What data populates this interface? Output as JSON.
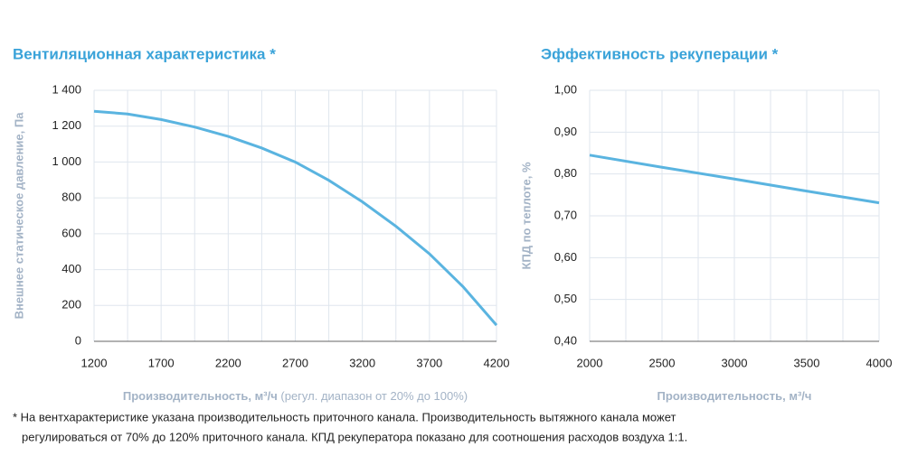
{
  "chart_data": [
    {
      "type": "line",
      "title": "Вентиляционная характеристика *",
      "y_label": "Внешнее статическое давление, Па",
      "x_label": "Производительность, м³/ч",
      "x_label_note": "(регул. диапазон от 20% до 100%)",
      "x": [
        1200,
        1450,
        1700,
        1950,
        2200,
        2450,
        2700,
        2950,
        3200,
        3450,
        3700,
        3950,
        4200
      ],
      "series": [
        {
          "color": "#5ab4e0",
          "values": [
            1283,
            1268,
            1237,
            1195,
            1143,
            1078,
            1000,
            898,
            778,
            642,
            488,
            305,
            90
          ]
        }
      ],
      "xlim": [
        1200,
        4200
      ],
      "xticks": [
        1200,
        1700,
        2200,
        2700,
        3200,
        3700,
        4200
      ],
      "ylim": [
        0,
        1400
      ],
      "yticks": [
        0,
        200,
        400,
        600,
        800,
        {
          "value": 1000,
          "label": "1 000"
        },
        {
          "value": 1200,
          "label": "1 200"
        },
        {
          "value": 1400,
          "label": "1 400"
        }
      ],
      "grid": true
    },
    {
      "type": "line",
      "title": "Эффективность рекуперации *",
      "y_label": "КПД по теплоте, %",
      "x_label": "Производительность, м³/ч",
      "x": [
        2000,
        2500,
        3000,
        3500,
        4000
      ],
      "series": [
        {
          "color": "#5ab4e0",
          "values": [
            0.845,
            0.816,
            0.788,
            0.759,
            0.731
          ]
        }
      ],
      "xlim": [
        2000,
        4000
      ],
      "xticks": [
        2000,
        2500,
        3000,
        3500,
        4000
      ],
      "ylim": [
        0.4,
        1.0
      ],
      "yticks": [
        {
          "value": 0.4,
          "label": "0,40"
        },
        {
          "value": 0.5,
          "label": "0,50"
        },
        {
          "value": 0.6,
          "label": "0,60"
        },
        {
          "value": 0.7,
          "label": "0,70"
        },
        {
          "value": 0.8,
          "label": "0,80"
        },
        {
          "value": 0.9,
          "label": "0,90"
        },
        {
          "value": 1.0,
          "label": "1,00"
        }
      ],
      "grid": true
    }
  ],
  "footnote": [
    "* На вентхарактеристике указана производительность приточного канала. Производительность вытяжного канала может",
    "регулироваться от 70% до 120% приточного канала. КПД рекуператора показано для соотношения расходов воздуха 1:1."
  ]
}
